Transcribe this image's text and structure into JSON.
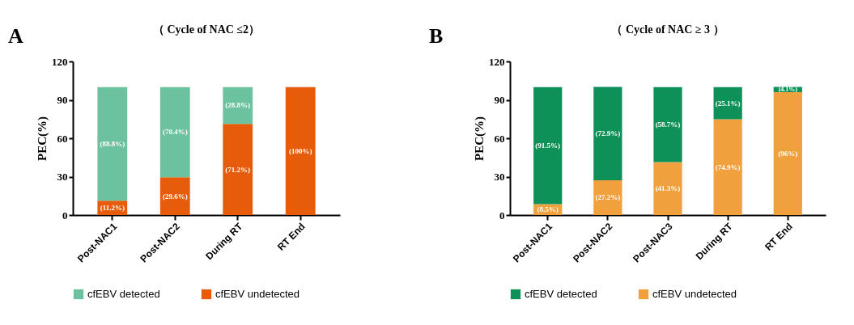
{
  "chart_data": [
    {
      "type": "bar",
      "stacked": true,
      "title": "（ Cycle of NAC ≤2）",
      "ylabel": "PEC(%)",
      "annotations": [
        "A"
      ],
      "categories": [
        "Post-NAC1",
        "Post-NAC2",
        "During RT",
        "RT End"
      ],
      "ylim": [
        0,
        120
      ],
      "yticks": [
        0,
        30,
        60,
        90,
        120
      ],
      "legend": "bottom",
      "series": [
        {
          "name": "cfEBV undetected",
          "color": "#e65c0a",
          "values": [
            11.2,
            29.6,
            71.2,
            100
          ],
          "value_labels": [
            "(11.2%)",
            "(29.6%)",
            "(71.2%)",
            "(100%)"
          ]
        },
        {
          "name": "cfEBV detected",
          "color": "#6cc29f",
          "values": [
            88.8,
            70.4,
            28.8,
            0
          ],
          "value_labels": [
            "(88.8%)",
            "(70.4%)",
            "(28.8%)",
            null
          ]
        }
      ]
    },
    {
      "type": "bar",
      "stacked": true,
      "title": "（ Cycle of NAC ≥ 3 ）",
      "ylabel": "PEC(%)",
      "annotations": [
        "B"
      ],
      "categories": [
        "Post-NAC1",
        "Post-NAC2",
        "Post-NAC3",
        "During RT",
        "RT End"
      ],
      "ylim": [
        0,
        120
      ],
      "yticks": [
        0,
        30,
        60,
        90,
        120
      ],
      "legend": "bottom",
      "series": [
        {
          "name": "cfEBV undetected",
          "color": "#f0a03c",
          "values": [
            8.5,
            27.2,
            41.3,
            74.9,
            96
          ],
          "value_labels": [
            "(8.5%)",
            "(27.2%)",
            "(41.3%)",
            "(74.9%)",
            "(96%)"
          ]
        },
        {
          "name": "cfEBV detected",
          "color": "#0e9158",
          "values": [
            91.5,
            72.9,
            58.7,
            25.1,
            4.1
          ],
          "value_labels": [
            "(91.5%)",
            "(72.9%)",
            "(58.7%)",
            "(25.1%)",
            "(4.1%)"
          ]
        }
      ]
    }
  ]
}
